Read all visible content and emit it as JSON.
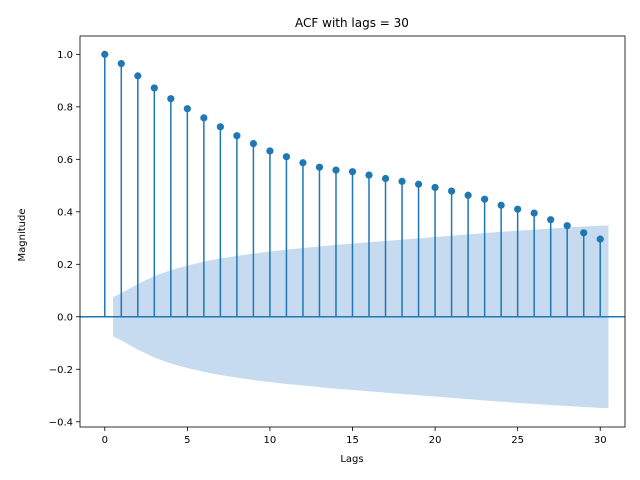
{
  "chart_data": {
    "type": "stem",
    "title": "ACF with lags = 30",
    "xlabel": "Lags",
    "ylabel": "Magnitude",
    "xlim": [
      -1.5,
      31.5
    ],
    "ylim": [
      -0.42,
      1.07
    ],
    "xticks": [
      0,
      5,
      10,
      15,
      20,
      25,
      30
    ],
    "xtick_labels": [
      "0",
      "5",
      "10",
      "15",
      "20",
      "25",
      "30"
    ],
    "yticks": [
      -0.4,
      -0.2,
      0.0,
      0.2,
      0.4,
      0.6,
      0.8,
      1.0
    ],
    "ytick_labels": [
      "−0.4",
      "−0.2",
      "0.0",
      "0.2",
      "0.4",
      "0.6",
      "0.8",
      "1.0"
    ],
    "grid": false,
    "lags": [
      0,
      1,
      2,
      3,
      4,
      5,
      6,
      7,
      8,
      9,
      10,
      11,
      12,
      13,
      14,
      15,
      16,
      17,
      18,
      19,
      20,
      21,
      22,
      23,
      24,
      25,
      26,
      27,
      28,
      29,
      30
    ],
    "values": [
      1.0,
      0.965,
      0.918,
      0.872,
      0.831,
      0.793,
      0.758,
      0.724,
      0.69,
      0.66,
      0.632,
      0.61,
      0.587,
      0.57,
      0.559,
      0.553,
      0.54,
      0.527,
      0.516,
      0.505,
      0.493,
      0.479,
      0.463,
      0.448,
      0.425,
      0.41,
      0.395,
      0.37,
      0.347,
      0.32,
      0.296
    ],
    "confidence_band": {
      "x": [
        0.5,
        1,
        2,
        3,
        4,
        5,
        6,
        7,
        8,
        9,
        10,
        11,
        12,
        13,
        14,
        15,
        16,
        17,
        18,
        19,
        20,
        21,
        22,
        23,
        24,
        25,
        26,
        27,
        28,
        29,
        30,
        30.5
      ],
      "upper": [
        0.075,
        0.09,
        0.125,
        0.155,
        0.178,
        0.195,
        0.21,
        0.222,
        0.232,
        0.241,
        0.249,
        0.256,
        0.262,
        0.268,
        0.274,
        0.279,
        0.284,
        0.289,
        0.294,
        0.299,
        0.304,
        0.309,
        0.314,
        0.319,
        0.324,
        0.328,
        0.332,
        0.336,
        0.34,
        0.344,
        0.347,
        0.348
      ]
    },
    "colors": {
      "stem": "#1f77b4",
      "band": "#c6dbef",
      "zero_line": "#1f77b4"
    }
  }
}
